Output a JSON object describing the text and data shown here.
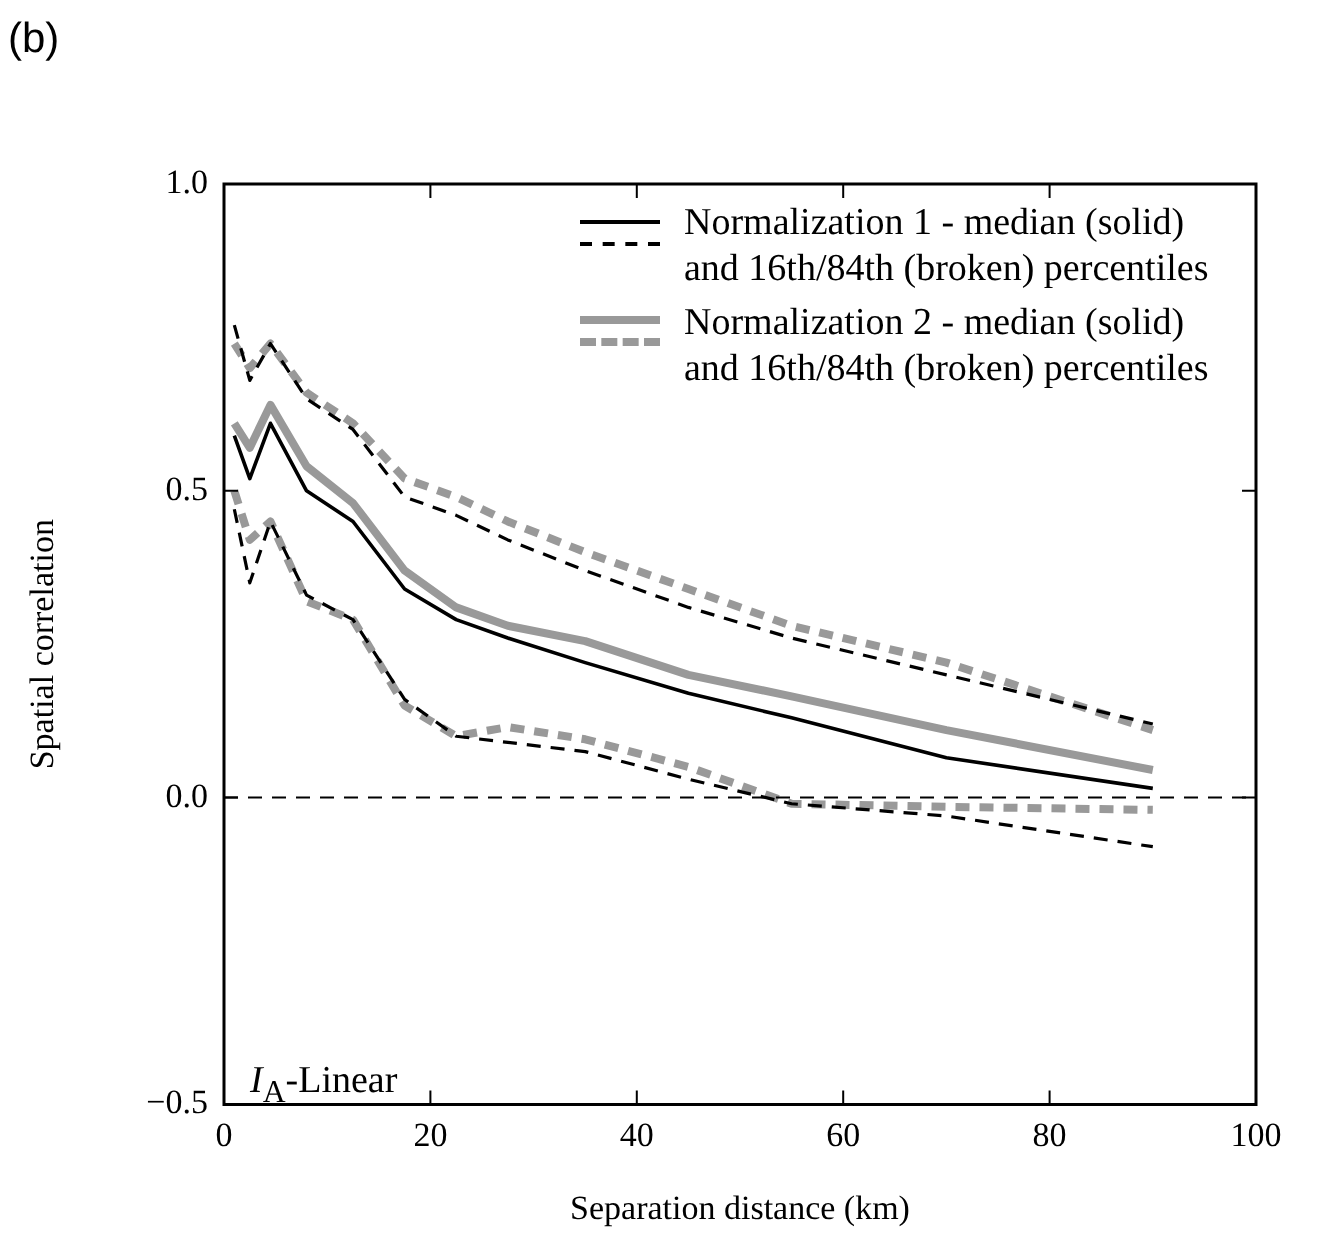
{
  "chart_data": {
    "type": "line",
    "xlabel": "Separation distance (km)",
    "ylabel": "Spatial correlation",
    "annotations": [
      "(b)",
      "I$_{A}$-Linear"
    ],
    "x": [
      1,
      2.5,
      4.5,
      8,
      12.5,
      17.5,
      22.5,
      27.5,
      35,
      45,
      55,
      70,
      90
    ],
    "xlim": [
      0,
      100
    ],
    "xticks": [
      0,
      20,
      40,
      60,
      80,
      100
    ],
    "ylim": [
      -0.5,
      1.0
    ],
    "yticks": [
      {
        "value": -0.5,
        "label": "−0.5"
      },
      {
        "value": 0,
        "label": "0.0"
      },
      {
        "value": 0.5,
        "label": "0.5"
      },
      {
        "value": 1.0,
        "label": "1.0"
      }
    ],
    "grid": false,
    "legend": "top right",
    "marker": "none",
    "ref_lines": [
      {
        "axis": "y",
        "value": 0,
        "color": "#000000",
        "line_style": "dashed"
      }
    ],
    "series": [
      {
        "name": "Normalization 1 - median (solid) and 16th/84th (broken) percentiles",
        "color": "#000000",
        "line_style": "solid",
        "values": [
          0.59,
          0.52,
          0.61,
          0.5,
          0.45,
          0.34,
          0.29,
          0.26,
          0.22,
          0.17,
          0.13,
          0.065,
          0.015
        ]
      },
      {
        "color": "#000000",
        "line_style": "dashed",
        "values": [
          0.77,
          0.68,
          0.74,
          0.65,
          0.6,
          0.49,
          0.46,
          0.42,
          0.37,
          0.31,
          0.26,
          0.2,
          0.12
        ]
      },
      {
        "color": "#000000",
        "line_style": "dashed",
        "values": [
          0.47,
          0.35,
          0.45,
          0.33,
          0.29,
          0.16,
          0.1,
          0.09,
          0.075,
          0.03,
          -0.01,
          -0.03,
          -0.08
        ]
      },
      {
        "name": "Normalization 2 - median (solid) and 16th/84th (broken) percentiles",
        "color": "#999999",
        "line_style": "solid",
        "values": [
          0.61,
          0.57,
          0.64,
          0.54,
          0.48,
          0.37,
          0.31,
          0.28,
          0.255,
          0.2,
          0.165,
          0.11,
          0.045
        ]
      },
      {
        "color": "#999999",
        "line_style": "dashed",
        "values": [
          0.74,
          0.7,
          0.74,
          0.66,
          0.61,
          0.52,
          0.49,
          0.45,
          0.4,
          0.34,
          0.28,
          0.22,
          0.11
        ]
      },
      {
        "color": "#999999",
        "line_style": "dashed",
        "values": [
          0.5,
          0.42,
          0.45,
          0.32,
          0.29,
          0.15,
          0.1,
          0.115,
          0.095,
          0.05,
          -0.01,
          -0.015,
          -0.02
        ]
      }
    ]
  }
}
